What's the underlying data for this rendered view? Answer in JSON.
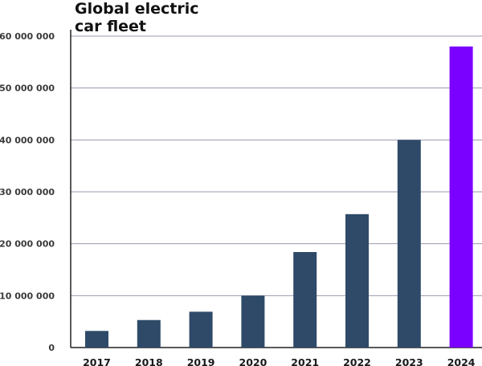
{
  "chart_data": {
    "type": "bar",
    "title": [
      "Global electric",
      "car fleet"
    ],
    "xlabel": "",
    "ylabel": "",
    "categories": [
      "2017",
      "2018",
      "2019",
      "2020",
      "2021",
      "2022",
      "2023",
      "2024"
    ],
    "values": [
      3200000,
      5300000,
      6900000,
      10000000,
      18400000,
      25700000,
      40000000,
      58000000
    ],
    "ylim": [
      0,
      60000000
    ],
    "yticks": [
      0,
      10000000,
      20000000,
      30000000,
      40000000,
      50000000,
      60000000
    ],
    "ytick_labels": [
      "0",
      "10 000 000",
      "20 000 000",
      "30 000 000",
      "40 000 000",
      "50 000 000",
      "60 000 000"
    ],
    "grid": true,
    "colors": {
      "bar": "#2e4a68",
      "highlight": "#7a00ff",
      "grid": "#9a9aae",
      "axis": "#222222"
    },
    "highlight_index": 7
  }
}
